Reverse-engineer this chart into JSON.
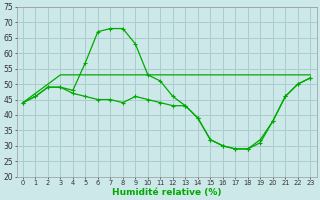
{
  "xlabel": "Humidité relative (%)",
  "bg_color": "#cce8e8",
  "grid_color": "#aacccc",
  "line_color": "#00aa00",
  "xlim": [
    -0.5,
    23.5
  ],
  "ylim": [
    20,
    75
  ],
  "yticks": [
    20,
    25,
    30,
    35,
    40,
    45,
    50,
    55,
    60,
    65,
    70,
    75
  ],
  "xticks": [
    0,
    1,
    2,
    3,
    4,
    5,
    6,
    7,
    8,
    9,
    10,
    11,
    12,
    13,
    14,
    15,
    16,
    17,
    18,
    19,
    20,
    21,
    22,
    23
  ],
  "line1_x": [
    0,
    1,
    2,
    3,
    4,
    5,
    6,
    7,
    8,
    9,
    10,
    11,
    12,
    13,
    14,
    15,
    16,
    17,
    18,
    19,
    20,
    21,
    22,
    23
  ],
  "line1_y": [
    44,
    46,
    49,
    49,
    48,
    57,
    67,
    68,
    68,
    63,
    53,
    51,
    46,
    43,
    39,
    32,
    30,
    29,
    29,
    32,
    38,
    46,
    50,
    52
  ],
  "line2_x": [
    0,
    3,
    23
  ],
  "line2_y": [
    44,
    53,
    53
  ],
  "line3_x": [
    0,
    1,
    2,
    3,
    4,
    5,
    6,
    7,
    8,
    9,
    10,
    11,
    12,
    13,
    14,
    15,
    16,
    17,
    18,
    19,
    20,
    21,
    22,
    23
  ],
  "line3_y": [
    44,
    46,
    49,
    49,
    47,
    46,
    45,
    45,
    44,
    46,
    45,
    44,
    43,
    43,
    39,
    32,
    30,
    29,
    29,
    31,
    38,
    46,
    50,
    52
  ]
}
